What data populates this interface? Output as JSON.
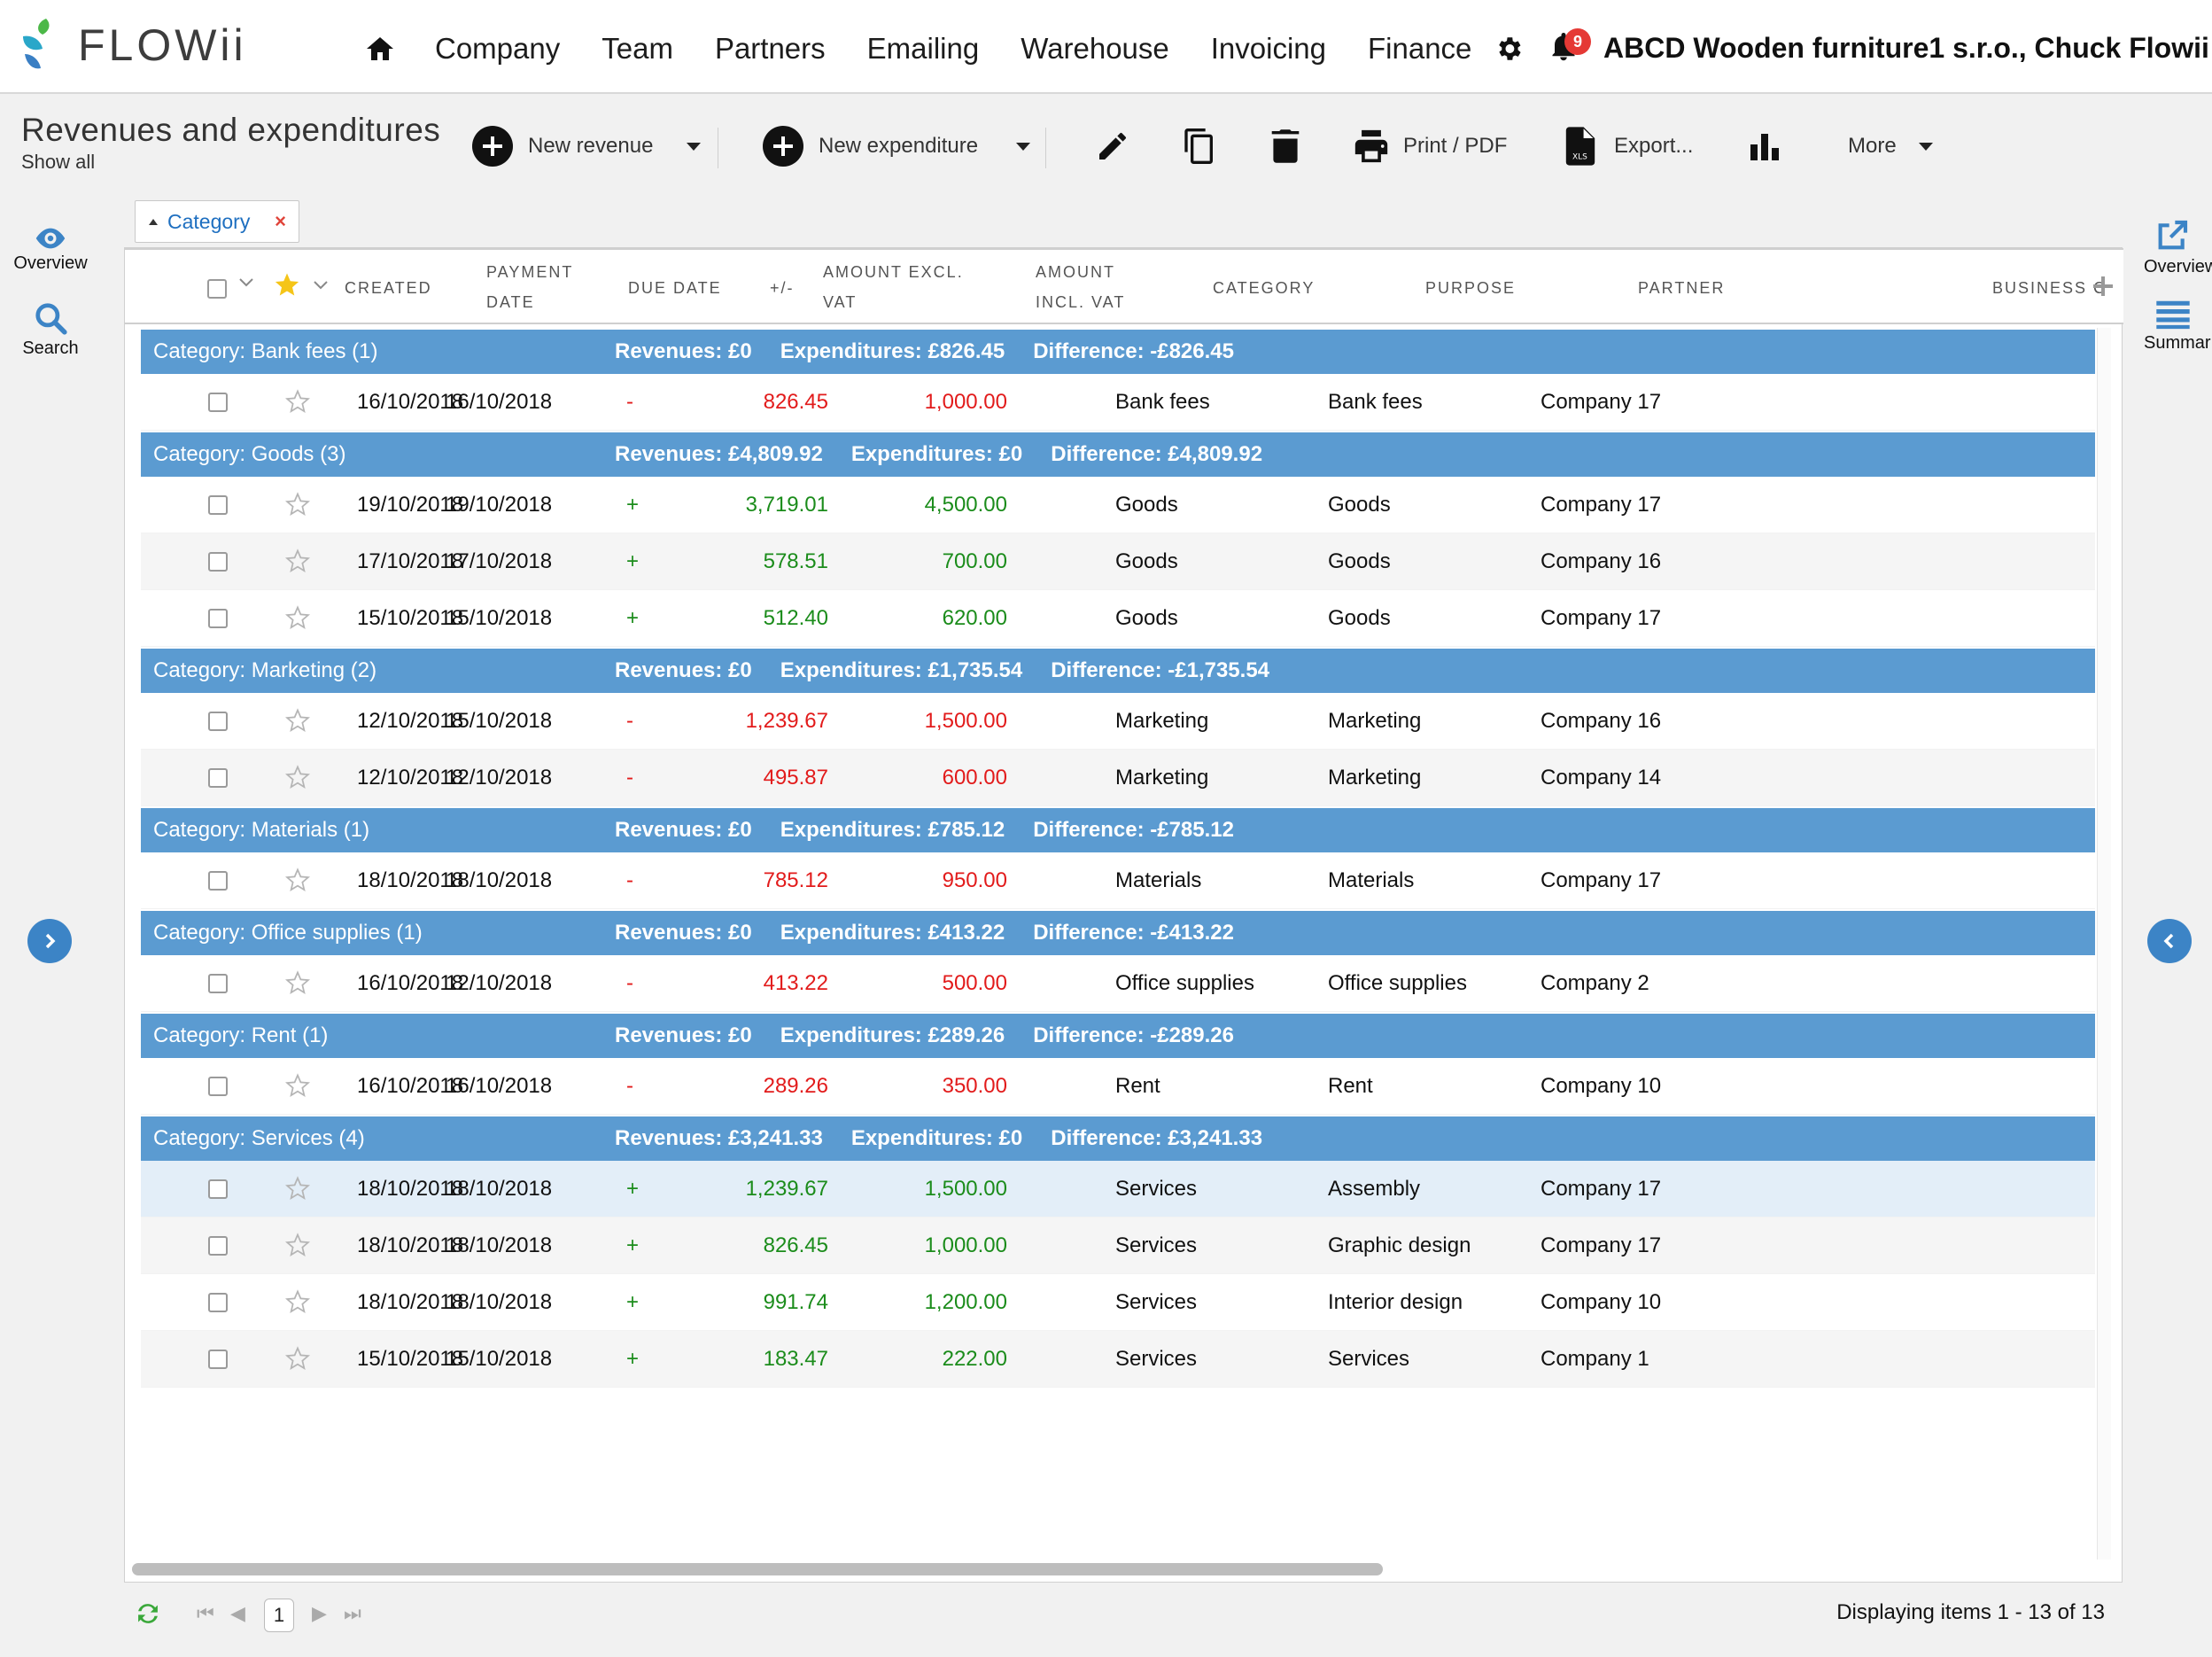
{
  "app": {
    "logo_text": "FLOWii",
    "nav": [
      "Company",
      "Team",
      "Partners",
      "Emailing",
      "Warehouse",
      "Invoicing",
      "Finance"
    ],
    "notification_count": "9",
    "account": "ABCD Wooden furniture1 s.r.o., Chuck Flowii"
  },
  "toolbar": {
    "title": "Revenues and expenditures",
    "subtitle": "Show all",
    "new_revenue": "New revenue",
    "new_expenditure": "New expenditure",
    "print": "Print / PDF",
    "export": "Export...",
    "more": "More"
  },
  "left_panel": {
    "overview": "Overview",
    "search": "Search"
  },
  "right_panel": {
    "overview": "Overview",
    "summary": "Summar"
  },
  "filter_chip": {
    "label": "Category"
  },
  "columns": {
    "created": "CREATED",
    "payment_date_1": "PAYMENT",
    "payment_date_2": "DATE",
    "due_date": "DUE DATE",
    "plusminus": "+/-",
    "amount_excl_1": "AMOUNT EXCL.",
    "amount_excl_2": "VAT",
    "amount_incl_1": "AMOUNT",
    "amount_incl_2": "INCL. VAT",
    "category": "CATEGORY",
    "purpose": "PURPOSE",
    "partner": "PARTNER",
    "business": "BUSINESS C"
  },
  "groups": [
    {
      "title": "Category: Bank fees (1)",
      "revenues": "Revenues: £0",
      "expenditures": "Expenditures: £826.45",
      "difference": "Difference: -£826.45",
      "rows": [
        {
          "created": "16/10/2018",
          "payment": "16/10/2018",
          "sign": "-",
          "excl": "826.45",
          "incl": "1,000.00",
          "category": "Bank fees",
          "purpose": "Bank fees",
          "partner": "Company 17"
        }
      ]
    },
    {
      "title": "Category: Goods (3)",
      "revenues": "Revenues: £4,809.92",
      "expenditures": "Expenditures: £0",
      "difference": "Difference: £4,809.92",
      "rows": [
        {
          "created": "19/10/2018",
          "payment": "19/10/2018",
          "sign": "+",
          "excl": "3,719.01",
          "incl": "4,500.00",
          "category": "Goods",
          "purpose": "Goods",
          "partner": "Company 17"
        },
        {
          "created": "17/10/2018",
          "payment": "17/10/2018",
          "sign": "+",
          "excl": "578.51",
          "incl": "700.00",
          "category": "Goods",
          "purpose": "Goods",
          "partner": "Company 16"
        },
        {
          "created": "15/10/2018",
          "payment": "15/10/2018",
          "sign": "+",
          "excl": "512.40",
          "incl": "620.00",
          "category": "Goods",
          "purpose": "Goods",
          "partner": "Company 17"
        }
      ]
    },
    {
      "title": "Category: Marketing (2)",
      "revenues": "Revenues: £0",
      "expenditures": "Expenditures: £1,735.54",
      "difference": "Difference: -£1,735.54",
      "rows": [
        {
          "created": "12/10/2018",
          "payment": "15/10/2018",
          "sign": "-",
          "excl": "1,239.67",
          "incl": "1,500.00",
          "category": "Marketing",
          "purpose": "Marketing",
          "partner": "Company 16"
        },
        {
          "created": "12/10/2018",
          "payment": "12/10/2018",
          "sign": "-",
          "excl": "495.87",
          "incl": "600.00",
          "category": "Marketing",
          "purpose": "Marketing",
          "partner": "Company 14"
        }
      ]
    },
    {
      "title": "Category: Materials (1)",
      "revenues": "Revenues: £0",
      "expenditures": "Expenditures: £785.12",
      "difference": "Difference: -£785.12",
      "rows": [
        {
          "created": "18/10/2018",
          "payment": "18/10/2018",
          "sign": "-",
          "excl": "785.12",
          "incl": "950.00",
          "category": "Materials",
          "purpose": "Materials",
          "partner": "Company 17"
        }
      ]
    },
    {
      "title": "Category: Office supplies (1)",
      "revenues": "Revenues: £0",
      "expenditures": "Expenditures: £413.22",
      "difference": "Difference: -£413.22",
      "rows": [
        {
          "created": "16/10/2018",
          "payment": "12/10/2018",
          "sign": "-",
          "excl": "413.22",
          "incl": "500.00",
          "category": "Office supplies",
          "purpose": "Office supplies",
          "partner": "Company 2"
        }
      ]
    },
    {
      "title": "Category: Rent (1)",
      "revenues": "Revenues: £0",
      "expenditures": "Expenditures: £289.26",
      "difference": "Difference: -£289.26",
      "rows": [
        {
          "created": "16/10/2018",
          "payment": "16/10/2018",
          "sign": "-",
          "excl": "289.26",
          "incl": "350.00",
          "category": "Rent",
          "purpose": "Rent",
          "partner": "Company 10"
        }
      ]
    },
    {
      "title": "Category: Services (4)",
      "revenues": "Revenues: £3,241.33",
      "expenditures": "Expenditures: £0",
      "difference": "Difference: £3,241.33",
      "rows": [
        {
          "created": "18/10/2018",
          "payment": "18/10/2018",
          "sign": "+",
          "excl": "1,239.67",
          "incl": "1,500.00",
          "category": "Services",
          "purpose": "Assembly",
          "partner": "Company 17"
        },
        {
          "created": "18/10/2018",
          "payment": "18/10/2018",
          "sign": "+",
          "excl": "826.45",
          "incl": "1,000.00",
          "category": "Services",
          "purpose": "Graphic design",
          "partner": "Company 17"
        },
        {
          "created": "18/10/2018",
          "payment": "18/10/2018",
          "sign": "+",
          "excl": "991.74",
          "incl": "1,200.00",
          "category": "Services",
          "purpose": "Interior design",
          "partner": "Company 10"
        },
        {
          "created": "15/10/2018",
          "payment": "15/10/2018",
          "sign": "+",
          "excl": "183.47",
          "incl": "222.00",
          "category": "Services",
          "purpose": "Services",
          "partner": "Company 1"
        }
      ]
    }
  ],
  "footer": {
    "page": "1",
    "display": "Displaying items 1 - 13 of 13"
  },
  "colors": {
    "group_bg": "#5b9bd1",
    "accent": "#3c84c6",
    "expense": "#e21b1b",
    "revenue": "#1b8c1b",
    "star": "#f5c518"
  }
}
